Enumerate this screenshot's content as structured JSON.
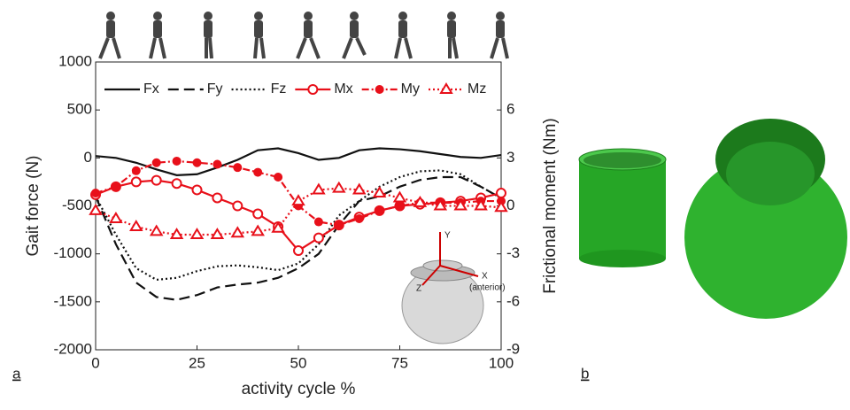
{
  "chart_data": {
    "type": "line",
    "x_label": "activity cycle %",
    "y_label": "Gait force (N)",
    "y2_label": "Frictional moment (Nm)",
    "x": [
      0,
      5,
      10,
      15,
      20,
      25,
      30,
      35,
      40,
      45,
      50,
      55,
      60,
      65,
      70,
      75,
      80,
      85,
      90,
      95,
      100
    ],
    "xlim": [
      0,
      100
    ],
    "xticks": [
      0,
      25,
      50,
      75,
      100
    ],
    "ylim": [
      -2000,
      1000
    ],
    "yticks": [
      -2000,
      -1500,
      -1000,
      -500,
      0,
      500,
      1000
    ],
    "y2lim": [
      -9,
      9
    ],
    "y2ticks": [
      -9,
      -6,
      -3,
      0,
      3,
      6
    ],
    "series": [
      {
        "name": "Fx",
        "color": "#111111",
        "dash": "solid",
        "marker": "none",
        "values": [
          20,
          0,
          -50,
          -120,
          -180,
          -170,
          -100,
          -20,
          80,
          100,
          50,
          -20,
          0,
          80,
          100,
          90,
          70,
          40,
          10,
          0,
          30
        ]
      },
      {
        "name": "Fy",
        "color": "#111111",
        "dash": "dashed",
        "marker": "none",
        "values": [
          -400,
          -900,
          -1300,
          -1450,
          -1480,
          -1430,
          -1350,
          -1320,
          -1300,
          -1250,
          -1150,
          -1000,
          -700,
          -450,
          -400,
          -300,
          -230,
          -200,
          -200,
          -300,
          -420
        ]
      },
      {
        "name": "Fz",
        "color": "#111111",
        "dash": "dotted",
        "marker": "none",
        "values": [
          -400,
          -800,
          -1150,
          -1270,
          -1250,
          -1180,
          -1130,
          -1120,
          -1140,
          -1170,
          -1100,
          -900,
          -600,
          -450,
          -300,
          -200,
          -140,
          -130,
          -170,
          -300,
          -420
        ]
      },
      {
        "name": "Mx",
        "color": "#e8101a",
        "dash": "solid",
        "marker": "open-circle",
        "axis": "y2",
        "values": [
          0.7,
          1.2,
          1.5,
          1.6,
          1.4,
          1.0,
          0.5,
          0.0,
          -0.5,
          -1.3,
          -2.8,
          -2.0,
          -1.2,
          -0.7,
          -0.3,
          0,
          0.1,
          0.2,
          0.3,
          0.5,
          0.8
        ]
      },
      {
        "name": "My",
        "color": "#e8101a",
        "dash": "dashdot",
        "marker": "filled-circle",
        "axis": "y2",
        "values": [
          0.8,
          1.2,
          2.2,
          2.7,
          2.8,
          2.7,
          2.6,
          2.4,
          2.1,
          1.8,
          0.0,
          -1.0,
          -1.2,
          -0.8,
          -0.3,
          0.0,
          0.2,
          0.2,
          0.2,
          0.3,
          0.3
        ]
      },
      {
        "name": "Mz",
        "color": "#e8101a",
        "dash": "dotted",
        "marker": "open-triangle",
        "axis": "y2",
        "values": [
          -0.3,
          -0.8,
          -1.3,
          -1.6,
          -1.8,
          -1.8,
          -1.8,
          -1.7,
          -1.6,
          -1.4,
          0.3,
          1.0,
          1.1,
          1.0,
          0.8,
          0.5,
          0.2,
          0.0,
          0.0,
          0.0,
          -0.1
        ]
      }
    ],
    "annotations": [
      "Y",
      "X",
      "(anterior)",
      "Z"
    ]
  },
  "panel_labels": [
    "a",
    "b"
  ]
}
